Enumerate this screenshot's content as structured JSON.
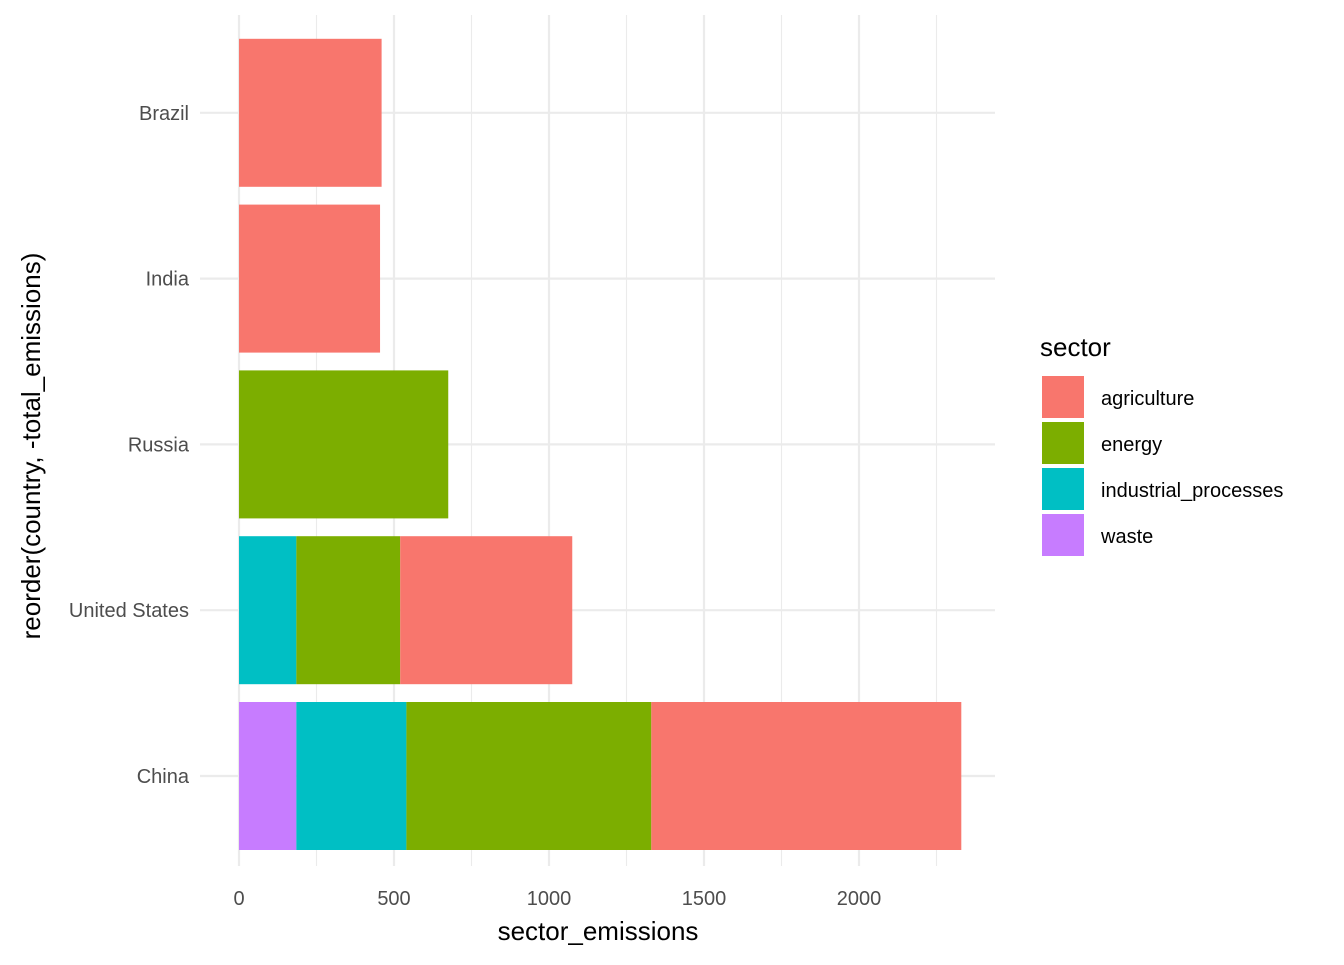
{
  "chart_data": {
    "type": "bar",
    "orientation": "horizontal",
    "stacked": true,
    "categories": [
      "China",
      "United States",
      "Russia",
      "India",
      "Brazil"
    ],
    "series": [
      {
        "name": "agriculture",
        "color": "#F8766D",
        "values": [
          1000,
          555,
          0,
          455,
          460
        ]
      },
      {
        "name": "energy",
        "color": "#7CAE00",
        "values": [
          790,
          335,
          675,
          0,
          0
        ]
      },
      {
        "name": "industrial_processes",
        "color": "#00BFC4",
        "values": [
          355,
          185,
          0,
          0,
          0
        ]
      },
      {
        "name": "waste",
        "color": "#C77CFF",
        "values": [
          185,
          0,
          0,
          0,
          0
        ]
      }
    ],
    "stack_order_from_zero": [
      "waste",
      "industrial_processes",
      "energy",
      "agriculture"
    ],
    "xlabel": "sector_emissions",
    "ylabel": "reorder(country, -total_emissions)",
    "xticks": [
      0,
      500,
      1000,
      1500,
      2000
    ],
    "xlim": [
      0,
      2440
    ],
    "grid": true,
    "legend": {
      "title": "sector",
      "position": "right"
    }
  }
}
